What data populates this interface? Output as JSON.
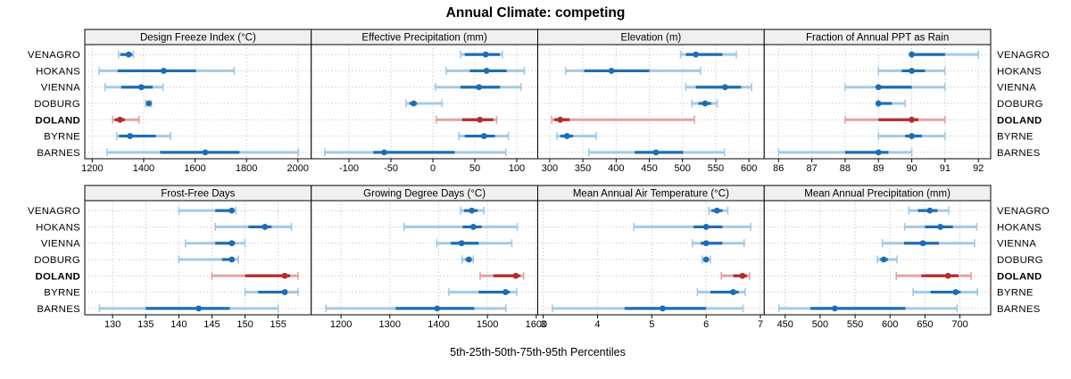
{
  "title": "Annual Climate: competing",
  "caption": "5th-25th-50th-75th-95th Percentiles",
  "stations": [
    "VENAGRO",
    "HOKANS",
    "VIENNA",
    "DOBURG",
    "DOLAND",
    "BYRNE",
    "BARNES"
  ],
  "highlight_station": "DOLAND",
  "colors": {
    "series": "#1e6db2",
    "series_light": "#a5c9e2",
    "highlight": "#b22d2d",
    "highlight_light": "#e2a4a4",
    "grid": "#c3c3c3",
    "strip_bg": "#f0f0f0",
    "panel_border": "#000000"
  },
  "chart_data": [
    {
      "type": "dot-interval",
      "title": "Design Freeze Index (°C)",
      "percentiles": [
        5,
        25,
        50,
        75,
        95
      ],
      "ticks": [
        1200,
        1400,
        1600,
        1800,
        2000
      ],
      "xlim": [
        1171,
        2052
      ],
      "series": [
        {
          "name": "VENAGRO",
          "values": [
            1302,
            1310,
            1342,
            1356,
            1360
          ]
        },
        {
          "name": "HOKANS",
          "values": [
            1227,
            1299,
            1478,
            1603,
            1752
          ]
        },
        {
          "name": "VIENNA",
          "values": [
            1250,
            1313,
            1391,
            1435,
            1476
          ]
        },
        {
          "name": "DOBURG",
          "values": [
            1408,
            1413,
            1420,
            1425,
            1430
          ]
        },
        {
          "name": "DOLAND",
          "values": [
            1279,
            1287,
            1308,
            1327,
            1382
          ]
        },
        {
          "name": "BYRNE",
          "values": [
            1296,
            1304,
            1347,
            1447,
            1505
          ]
        },
        {
          "name": "BARNES",
          "values": [
            1258,
            1464,
            1640,
            1773,
            2002
          ]
        }
      ]
    },
    {
      "type": "dot-interval",
      "title": "Effective Precipitation (mm)",
      "percentiles": [
        5,
        25,
        50,
        75,
        95
      ],
      "ticks": [
        -100,
        -50,
        0,
        50,
        100
      ],
      "xlim": [
        -145,
        125
      ],
      "series": [
        {
          "name": "VENAGRO",
          "values": [
            33,
            38,
            63,
            80,
            83
          ]
        },
        {
          "name": "HOKANS",
          "values": [
            16,
            44,
            64,
            88,
            109
          ]
        },
        {
          "name": "VIENNA",
          "values": [
            3,
            33,
            55,
            80,
            105
          ]
        },
        {
          "name": "DOBURG",
          "values": [
            -32,
            -28,
            -23,
            -19,
            11
          ]
        },
        {
          "name": "DOLAND",
          "values": [
            4,
            35,
            56,
            72,
            76
          ]
        },
        {
          "name": "BYRNE",
          "values": [
            31,
            38,
            61,
            74,
            90
          ]
        },
        {
          "name": "BARNES",
          "values": [
            -129,
            -71,
            -58,
            26,
            87
          ]
        }
      ]
    },
    {
      "type": "dot-interval",
      "title": "Elevation (m)",
      "percentiles": [
        5,
        25,
        50,
        75,
        95
      ],
      "ticks": [
        300,
        350,
        400,
        450,
        500,
        550,
        600
      ],
      "xlim": [
        282,
        623
      ],
      "series": [
        {
          "name": "VENAGRO",
          "values": [
            497,
            505,
            520,
            560,
            581
          ]
        },
        {
          "name": "HOKANS",
          "values": [
            324,
            352,
            393,
            450,
            527
          ]
        },
        {
          "name": "VIENNA",
          "values": [
            505,
            520,
            564,
            588,
            604
          ]
        },
        {
          "name": "DOBURG",
          "values": [
            514,
            524,
            534,
            543,
            552
          ]
        },
        {
          "name": "DOLAND",
          "values": [
            303,
            307,
            316,
            330,
            518
          ]
        },
        {
          "name": "BYRNE",
          "values": [
            311,
            316,
            326,
            335,
            370
          ]
        },
        {
          "name": "BARNES",
          "values": [
            359,
            428,
            460,
            501,
            563
          ]
        }
      ]
    },
    {
      "type": "dot-interval",
      "title": "Fraction of Annual PPT as Rain",
      "percentiles": [
        5,
        25,
        50,
        75,
        95
      ],
      "ticks": [
        86,
        87,
        88,
        89,
        90,
        91,
        92
      ],
      "xlim": [
        85.57,
        92.37
      ],
      "series": [
        {
          "name": "VENAGRO",
          "values": [
            90,
            90,
            90,
            91,
            92
          ]
        },
        {
          "name": "HOKANS",
          "values": [
            89,
            89.7,
            90,
            90.4,
            91
          ]
        },
        {
          "name": "VIENNA",
          "values": [
            88,
            89,
            89,
            90,
            91
          ]
        },
        {
          "name": "DOBURG",
          "values": [
            89,
            89,
            89,
            89.4,
            89.8
          ]
        },
        {
          "name": "DOLAND",
          "values": [
            88,
            89,
            90,
            90.2,
            91
          ]
        },
        {
          "name": "BYRNE",
          "values": [
            89,
            89.8,
            90,
            90.3,
            91
          ]
        },
        {
          "name": "BARNES",
          "values": [
            86,
            88,
            89,
            89.3,
            90
          ]
        }
      ]
    },
    {
      "type": "dot-interval",
      "title": "Frost-Free Days",
      "percentiles": [
        5,
        25,
        50,
        75,
        95
      ],
      "ticks": [
        130,
        135,
        140,
        145,
        150,
        155
      ],
      "xlim": [
        125.8,
        160
      ],
      "series": [
        {
          "name": "VENAGRO",
          "values": [
            140,
            145.5,
            148,
            148.3,
            148.6
          ]
        },
        {
          "name": "HOKANS",
          "values": [
            145.5,
            150.5,
            153,
            154,
            157
          ]
        },
        {
          "name": "VIENNA",
          "values": [
            141,
            145.5,
            148,
            148.5,
            150
          ]
        },
        {
          "name": "DOBURG",
          "values": [
            140,
            146.5,
            148,
            148.4,
            149
          ]
        },
        {
          "name": "DOLAND",
          "values": [
            145,
            150,
            156,
            156.8,
            158
          ]
        },
        {
          "name": "BYRNE",
          "values": [
            150,
            152,
            156,
            156.4,
            158
          ]
        },
        {
          "name": "BARNES",
          "values": [
            128,
            135,
            143,
            147.7,
            155
          ]
        }
      ]
    },
    {
      "type": "dot-interval",
      "title": "Growing Degree Days (°C)",
      "percentiles": [
        5,
        25,
        50,
        75,
        95
      ],
      "ticks": [
        1200,
        1300,
        1400,
        1500,
        1600
      ],
      "xlim": [
        1139,
        1603
      ],
      "series": [
        {
          "name": "VENAGRO",
          "values": [
            1445,
            1452,
            1468,
            1480,
            1493
          ]
        },
        {
          "name": "HOKANS",
          "values": [
            1329,
            1449,
            1471,
            1488,
            1561
          ]
        },
        {
          "name": "VIENNA",
          "values": [
            1396,
            1425,
            1447,
            1482,
            1550
          ]
        },
        {
          "name": "DOBURG",
          "values": [
            1448,
            1455,
            1462,
            1466,
            1471
          ]
        },
        {
          "name": "DOLAND",
          "values": [
            1485,
            1512,
            1558,
            1567,
            1574
          ]
        },
        {
          "name": "BYRNE",
          "values": [
            1421,
            1482,
            1537,
            1546,
            1560
          ]
        },
        {
          "name": "BARNES",
          "values": [
            1169,
            1312,
            1397,
            1473,
            1538
          ]
        }
      ]
    },
    {
      "type": "dot-interval",
      "title": "Mean Annual Air Temperature (°C)",
      "percentiles": [
        5,
        25,
        50,
        75,
        95
      ],
      "ticks": [
        3,
        4,
        5,
        6,
        7
      ],
      "xlim": [
        2.9,
        7.07
      ],
      "series": [
        {
          "name": "VENAGRO",
          "values": [
            6.05,
            6.1,
            6.2,
            6.3,
            6.4
          ]
        },
        {
          "name": "HOKANS",
          "values": [
            4.67,
            5.77,
            6.0,
            6.3,
            6.82
          ]
        },
        {
          "name": "VIENNA",
          "values": [
            5.75,
            5.9,
            6.0,
            6.3,
            6.7
          ]
        },
        {
          "name": "DOBURG",
          "values": [
            5.93,
            5.97,
            6.0,
            6.04,
            6.08
          ]
        },
        {
          "name": "DOLAND",
          "values": [
            6.28,
            6.5,
            6.67,
            6.75,
            6.8
          ]
        },
        {
          "name": "BYRNE",
          "values": [
            5.84,
            6.08,
            6.5,
            6.6,
            6.72
          ]
        },
        {
          "name": "BARNES",
          "values": [
            3.17,
            4.5,
            5.2,
            6.0,
            6.68
          ]
        }
      ]
    },
    {
      "type": "dot-interval",
      "title": "Mean Annual Precipitation (mm)",
      "percentiles": [
        5,
        25,
        50,
        75,
        95
      ],
      "ticks": [
        450,
        500,
        550,
        600,
        650,
        700
      ],
      "xlim": [
        420,
        744
      ],
      "series": [
        {
          "name": "VENAGRO",
          "values": [
            627,
            640,
            657,
            668,
            684
          ]
        },
        {
          "name": "HOKANS",
          "values": [
            621,
            650,
            672,
            690,
            724
          ]
        },
        {
          "name": "VIENNA",
          "values": [
            589,
            620,
            647,
            670,
            721
          ]
        },
        {
          "name": "DOBURG",
          "values": [
            582,
            586,
            591,
            597,
            610
          ]
        },
        {
          "name": "DOLAND",
          "values": [
            609,
            645,
            683,
            698,
            716
          ]
        },
        {
          "name": "BYRNE",
          "values": [
            633,
            658,
            694,
            701,
            725
          ]
        },
        {
          "name": "BARNES",
          "values": [
            441,
            486,
            521,
            622,
            696
          ]
        }
      ]
    }
  ]
}
